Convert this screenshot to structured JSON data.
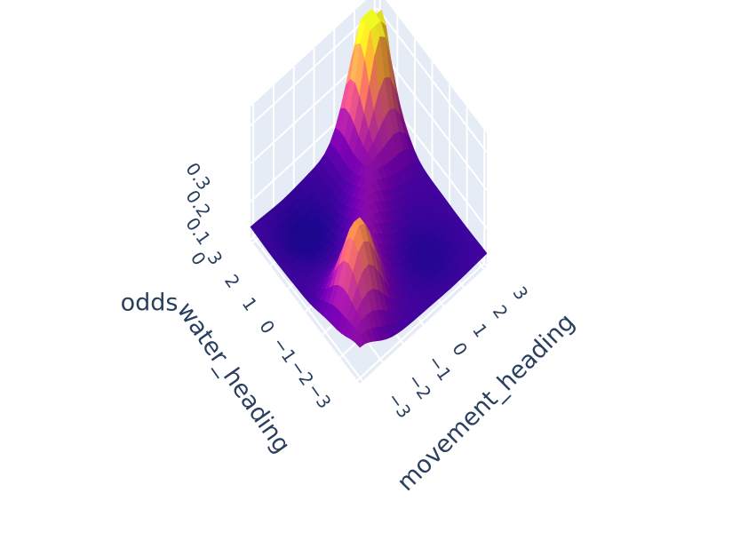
{
  "chart_data": {
    "type": "surface",
    "colorscale": "plasma",
    "colors": {
      "scene_bg": "#e5ecf6",
      "grid": "#ffffff",
      "text": "#2a3f5f",
      "low": "#0d0887",
      "mid": "#cc4778",
      "high": "#f0f921"
    },
    "axes": {
      "x": {
        "title": "movement_heading",
        "range": [
          -3.14,
          3.14
        ],
        "ticks": [
          {
            "value": -3,
            "label": "−3"
          },
          {
            "value": -2,
            "label": "−2"
          },
          {
            "value": -1,
            "label": "−1"
          },
          {
            "value": 0,
            "label": "0"
          },
          {
            "value": 1,
            "label": "1"
          },
          {
            "value": 2,
            "label": "2"
          },
          {
            "value": 3,
            "label": "3"
          }
        ]
      },
      "y": {
        "title": "water_heading",
        "range": [
          -3.14,
          3.14
        ],
        "ticks": [
          {
            "value": -3,
            "label": "−3"
          },
          {
            "value": -2,
            "label": "−2"
          },
          {
            "value": -1,
            "label": "−1"
          },
          {
            "value": 0,
            "label": "0"
          },
          {
            "value": 1,
            "label": "1"
          },
          {
            "value": 2,
            "label": "2"
          },
          {
            "value": 3,
            "label": "3"
          }
        ]
      },
      "z": {
        "title": "odds",
        "range": [
          0,
          0.35
        ],
        "ticks": [
          {
            "value": 0,
            "label": "0"
          },
          {
            "value": 0.1,
            "label": "0.1"
          },
          {
            "value": 0.2,
            "label": "0.2"
          },
          {
            "value": 0.3,
            "label": "0.3"
          }
        ]
      }
    },
    "grid_resolution": 24,
    "surface_model": "peaks along the diagonal movement_heading ≈ water_heading, strongest near 2.5 and near −1.5, low near movement_heading ≈ −water_heading"
  }
}
